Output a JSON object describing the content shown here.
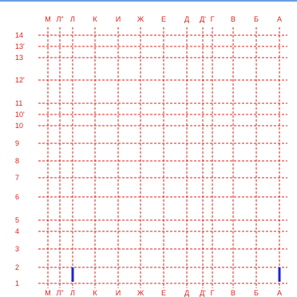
{
  "colors": {
    "grid": "#e0201c",
    "marker": "#1e24d6",
    "frame": "#3a7fd6"
  },
  "axes": {
    "columns": [
      "М",
      "Л\"",
      "Л",
      "К",
      "И",
      "Ж",
      "Е",
      "Д",
      "Д'",
      "Г",
      "В",
      "Б",
      "А"
    ],
    "rows": [
      "14",
      "13'",
      "13",
      "12'",
      "11",
      "10'",
      "10",
      "9",
      "8",
      "7",
      "6",
      "5",
      "4",
      "3",
      "2",
      "1"
    ]
  },
  "markers": [
    {
      "column": "Л",
      "from_row": "2",
      "to_row": "1"
    },
    {
      "column": "А",
      "from_row": "2",
      "to_row": "1"
    }
  ]
}
